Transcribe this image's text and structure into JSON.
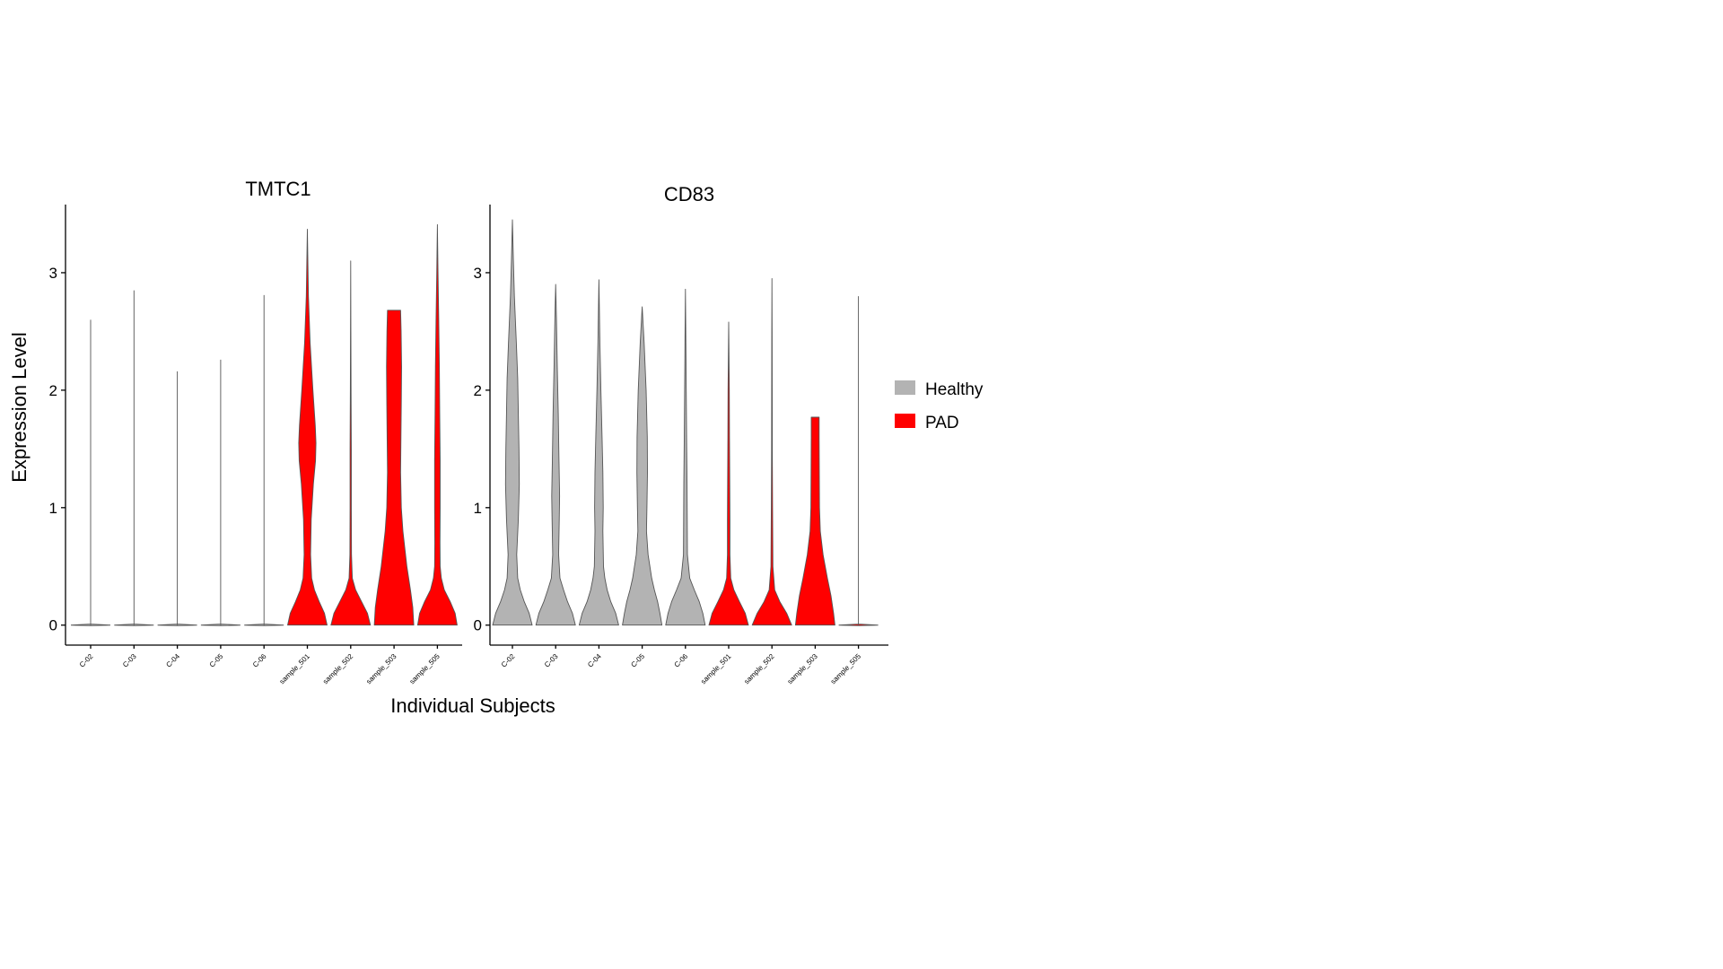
{
  "xlabel": "Individual Subjects",
  "ylabel": "Expression Level",
  "legend": {
    "position": "right",
    "items": [
      {
        "label": "Healthy",
        "color": "#b3b3b3"
      },
      {
        "label": "PAD",
        "color": "#ff0000"
      }
    ]
  },
  "chart_data": [
    {
      "type": "violin",
      "title": "TMTC1",
      "ylim": [
        -0.17,
        3.58
      ],
      "yticks": [
        0,
        1,
        2,
        3
      ],
      "categories": [
        "C-02",
        "C-03",
        "C-04",
        "C-05",
        "C-06",
        "sample_501",
        "sample_502",
        "sample_503",
        "sample_505"
      ],
      "groups": [
        "Healthy",
        "Healthy",
        "Healthy",
        "Healthy",
        "Healthy",
        "PAD",
        "PAD",
        "PAD",
        "PAD"
      ],
      "max": [
        2.6,
        2.85,
        2.16,
        2.26,
        2.81,
        3.37,
        3.1,
        2.68,
        3.41
      ],
      "density": [
        [
          [
            0,
            1
          ],
          [
            0.05,
            0.01
          ],
          [
            2.6,
            0
          ]
        ],
        [
          [
            0,
            1
          ],
          [
            0.05,
            0.01
          ],
          [
            2.85,
            0
          ]
        ],
        [
          [
            0,
            1
          ],
          [
            0.05,
            0.01
          ],
          [
            2.16,
            0
          ]
        ],
        [
          [
            0,
            1
          ],
          [
            0.05,
            0.01
          ],
          [
            2.26,
            0
          ]
        ],
        [
          [
            0,
            1
          ],
          [
            0.05,
            0.01
          ],
          [
            2.81,
            0
          ]
        ],
        [
          [
            0,
            0.92
          ],
          [
            0.1,
            0.8
          ],
          [
            0.2,
            0.55
          ],
          [
            0.3,
            0.33
          ],
          [
            0.4,
            0.2
          ],
          [
            0.6,
            0.15
          ],
          [
            0.9,
            0.18
          ],
          [
            1.2,
            0.28
          ],
          [
            1.4,
            0.38
          ],
          [
            1.55,
            0.4
          ],
          [
            1.7,
            0.37
          ],
          [
            2.0,
            0.26
          ],
          [
            2.4,
            0.13
          ],
          [
            2.8,
            0.05
          ],
          [
            3.37,
            0
          ]
        ],
        [
          [
            0,
            1
          ],
          [
            0.1,
            0.85
          ],
          [
            0.2,
            0.55
          ],
          [
            0.3,
            0.25
          ],
          [
            0.4,
            0.08
          ],
          [
            0.6,
            0.04
          ],
          [
            1.0,
            0.03
          ],
          [
            1.5,
            0.03
          ],
          [
            2.0,
            0.02
          ],
          [
            2.5,
            0.01
          ],
          [
            3.1,
            0
          ]
        ],
        [
          [
            0,
            1
          ],
          [
            0.15,
            0.95
          ],
          [
            0.3,
            0.83
          ],
          [
            0.5,
            0.65
          ],
          [
            0.8,
            0.45
          ],
          [
            1.0,
            0.37
          ],
          [
            1.3,
            0.33
          ],
          [
            1.6,
            0.35
          ],
          [
            1.9,
            0.37
          ],
          [
            2.2,
            0.38
          ],
          [
            2.5,
            0.36
          ],
          [
            2.68,
            0.33
          ]
        ],
        [
          [
            0,
            1
          ],
          [
            0.1,
            0.9
          ],
          [
            0.2,
            0.65
          ],
          [
            0.3,
            0.35
          ],
          [
            0.4,
            0.2
          ],
          [
            0.5,
            0.14
          ],
          [
            0.7,
            0.13
          ],
          [
            1.0,
            0.14
          ],
          [
            1.4,
            0.14
          ],
          [
            1.8,
            0.12
          ],
          [
            2.2,
            0.1
          ],
          [
            2.6,
            0.07
          ],
          [
            3.0,
            0.03
          ],
          [
            3.41,
            0
          ]
        ]
      ]
    },
    {
      "type": "violin",
      "title": "CD83",
      "ylim": [
        -0.17,
        3.58
      ],
      "yticks": [
        0,
        1,
        2,
        3
      ],
      "categories": [
        "C-02",
        "C-03",
        "C-04",
        "C-05",
        "C-06",
        "sample_501",
        "sample_502",
        "sample_503",
        "sample_505"
      ],
      "groups": [
        "Healthy",
        "Healthy",
        "Healthy",
        "Healthy",
        "Healthy",
        "PAD",
        "PAD",
        "PAD",
        "PAD"
      ],
      "max": [
        3.45,
        2.9,
        2.94,
        2.71,
        2.86,
        2.58,
        2.95,
        1.77,
        2.8
      ],
      "density": [
        [
          [
            0,
            1
          ],
          [
            0.1,
            0.85
          ],
          [
            0.2,
            0.6
          ],
          [
            0.3,
            0.4
          ],
          [
            0.4,
            0.27
          ],
          [
            0.6,
            0.22
          ],
          [
            0.9,
            0.3
          ],
          [
            1.2,
            0.35
          ],
          [
            1.5,
            0.33
          ],
          [
            1.8,
            0.3
          ],
          [
            2.1,
            0.27
          ],
          [
            2.4,
            0.2
          ],
          [
            2.8,
            0.1
          ],
          [
            3.1,
            0.05
          ],
          [
            3.45,
            0
          ]
        ],
        [
          [
            0,
            1
          ],
          [
            0.1,
            0.85
          ],
          [
            0.2,
            0.6
          ],
          [
            0.3,
            0.4
          ],
          [
            0.4,
            0.22
          ],
          [
            0.6,
            0.15
          ],
          [
            0.9,
            0.18
          ],
          [
            1.1,
            0.2
          ],
          [
            1.4,
            0.17
          ],
          [
            1.8,
            0.13
          ],
          [
            2.2,
            0.08
          ],
          [
            2.6,
            0.04
          ],
          [
            2.9,
            0
          ]
        ],
        [
          [
            0,
            1
          ],
          [
            0.1,
            0.85
          ],
          [
            0.2,
            0.6
          ],
          [
            0.3,
            0.42
          ],
          [
            0.4,
            0.3
          ],
          [
            0.5,
            0.23
          ],
          [
            0.8,
            0.2
          ],
          [
            1.0,
            0.22
          ],
          [
            1.3,
            0.2
          ],
          [
            1.6,
            0.16
          ],
          [
            2.0,
            0.1
          ],
          [
            2.4,
            0.05
          ],
          [
            2.94,
            0
          ]
        ],
        [
          [
            0,
            1
          ],
          [
            0.1,
            0.9
          ],
          [
            0.2,
            0.78
          ],
          [
            0.3,
            0.62
          ],
          [
            0.4,
            0.48
          ],
          [
            0.6,
            0.3
          ],
          [
            0.8,
            0.22
          ],
          [
            1.0,
            0.24
          ],
          [
            1.3,
            0.27
          ],
          [
            1.6,
            0.26
          ],
          [
            2.0,
            0.2
          ],
          [
            2.4,
            0.1
          ],
          [
            2.71,
            0
          ]
        ],
        [
          [
            0,
            1
          ],
          [
            0.1,
            0.88
          ],
          [
            0.2,
            0.7
          ],
          [
            0.3,
            0.45
          ],
          [
            0.4,
            0.22
          ],
          [
            0.6,
            0.1
          ],
          [
            0.9,
            0.09
          ],
          [
            1.2,
            0.08
          ],
          [
            1.6,
            0.06
          ],
          [
            2.0,
            0.04
          ],
          [
            2.5,
            0.02
          ],
          [
            2.86,
            0
          ]
        ],
        [
          [
            0,
            0.95
          ],
          [
            0.1,
            0.8
          ],
          [
            0.2,
            0.52
          ],
          [
            0.3,
            0.25
          ],
          [
            0.4,
            0.1
          ],
          [
            0.6,
            0.06
          ],
          [
            0.9,
            0.06
          ],
          [
            1.2,
            0.05
          ],
          [
            1.6,
            0.04
          ],
          [
            2.0,
            0.03
          ],
          [
            2.58,
            0
          ]
        ],
        [
          [
            0,
            1
          ],
          [
            0.1,
            0.75
          ],
          [
            0.2,
            0.4
          ],
          [
            0.3,
            0.14
          ],
          [
            0.5,
            0.05
          ],
          [
            1.0,
            0.03
          ],
          [
            1.5,
            0.02
          ],
          [
            2.0,
            0.015
          ],
          [
            2.5,
            0.01
          ],
          [
            2.95,
            0
          ]
        ],
        [
          [
            0,
            1
          ],
          [
            0.1,
            0.93
          ],
          [
            0.25,
            0.8
          ],
          [
            0.4,
            0.62
          ],
          [
            0.6,
            0.4
          ],
          [
            0.8,
            0.26
          ],
          [
            1.0,
            0.22
          ],
          [
            1.3,
            0.21
          ],
          [
            1.6,
            0.2
          ],
          [
            1.77,
            0.2
          ]
        ],
        [
          [
            0,
            1
          ],
          [
            0.05,
            0.01
          ],
          [
            2.8,
            0
          ]
        ]
      ]
    }
  ]
}
